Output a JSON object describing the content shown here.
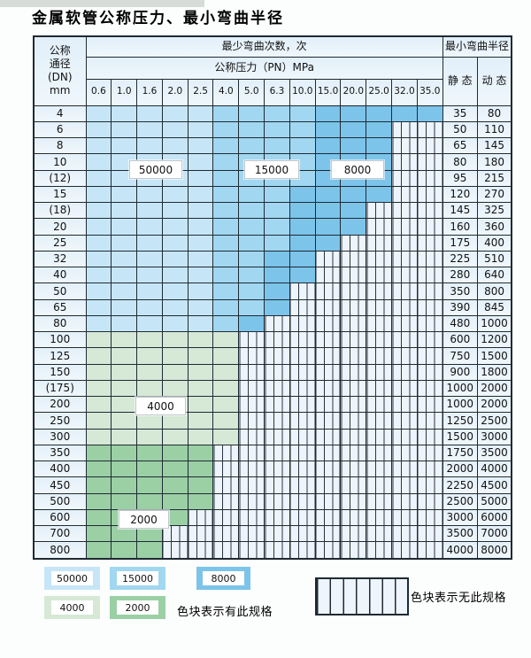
{
  "title": "金属软管公称压力、最小弯曲半径",
  "table": {
    "header": {
      "dn": "公称\n通径\n(DN)\nmm",
      "bend_cycles": "最少弯曲次数，次",
      "pressure": "公称压力（PN）MPa",
      "radius": "最小弯曲半径",
      "static": "静 态",
      "dynamic": "动 态",
      "pressures": [
        "0.6",
        "1.0",
        "1.6",
        "2.0",
        "2.5",
        "4.0",
        "5.0",
        "6.3",
        "10.0",
        "15.0",
        "20.0",
        "25.0",
        "32.0",
        "35.0"
      ]
    },
    "categories": {
      "b1": {
        "value": "50000",
        "color": "#c6e6f7"
      },
      "b2": {
        "value": "15000",
        "color": "#a2d7f1"
      },
      "b3": {
        "value": "8000",
        "color": "#7cc4ea"
      },
      "g1": {
        "value": "4000",
        "color": "#d6e8d6"
      },
      "g2": {
        "value": "2000",
        "color": "#9bd0a5"
      },
      "x": {
        "value": "无此规格",
        "pattern": "hatch"
      }
    },
    "rows": [
      {
        "dn": "4",
        "cells": [
          [
            "b1",
            5
          ],
          [
            "b2",
            4
          ],
          [
            "b3",
            5
          ]
        ],
        "static": "35",
        "dynamic": "80"
      },
      {
        "dn": "6",
        "cells": [
          [
            "b1",
            5
          ],
          [
            "b2",
            4
          ],
          [
            "b3",
            3
          ],
          [
            "x",
            2
          ]
        ],
        "static": "50",
        "dynamic": "110"
      },
      {
        "dn": "8",
        "cells": [
          [
            "b1",
            5
          ],
          [
            "b2",
            4
          ],
          [
            "b3",
            3
          ],
          [
            "x",
            2
          ]
        ],
        "static": "65",
        "dynamic": "145"
      },
      {
        "dn": "10",
        "cells": [
          [
            "b1",
            5
          ],
          [
            "b2",
            4
          ],
          [
            "b3",
            3
          ],
          [
            "x",
            2
          ]
        ],
        "static": "80",
        "dynamic": "180"
      },
      {
        "dn": "(12)",
        "cells": [
          [
            "b1",
            5
          ],
          [
            "b2",
            4
          ],
          [
            "b3",
            3
          ],
          [
            "x",
            2
          ]
        ],
        "static": "95",
        "dynamic": "215"
      },
      {
        "dn": "15",
        "cells": [
          [
            "b1",
            5
          ],
          [
            "b2",
            3
          ],
          [
            "b3",
            4
          ],
          [
            "x",
            2
          ]
        ],
        "static": "120",
        "dynamic": "270"
      },
      {
        "dn": "(18)",
        "cells": [
          [
            "b1",
            5
          ],
          [
            "b2",
            3
          ],
          [
            "b3",
            3
          ],
          [
            "x",
            3
          ]
        ],
        "static": "145",
        "dynamic": "325"
      },
      {
        "dn": "20",
        "cells": [
          [
            "b1",
            5
          ],
          [
            "b2",
            3
          ],
          [
            "b3",
            3
          ],
          [
            "x",
            3
          ]
        ],
        "static": "160",
        "dynamic": "360"
      },
      {
        "dn": "25",
        "cells": [
          [
            "b1",
            5
          ],
          [
            "b2",
            3
          ],
          [
            "b3",
            2
          ],
          [
            "x",
            4
          ]
        ],
        "static": "175",
        "dynamic": "400"
      },
      {
        "dn": "32",
        "cells": [
          [
            "b1",
            5
          ],
          [
            "b2",
            2
          ],
          [
            "b3",
            2
          ],
          [
            "x",
            5
          ]
        ],
        "static": "225",
        "dynamic": "510"
      },
      {
        "dn": "40",
        "cells": [
          [
            "b1",
            5
          ],
          [
            "b2",
            2
          ],
          [
            "b3",
            2
          ],
          [
            "x",
            5
          ]
        ],
        "static": "280",
        "dynamic": "640"
      },
      {
        "dn": "50",
        "cells": [
          [
            "b1",
            5
          ],
          [
            "b2",
            2
          ],
          [
            "b3",
            1
          ],
          [
            "x",
            6
          ]
        ],
        "static": "350",
        "dynamic": "800"
      },
      {
        "dn": "65",
        "cells": [
          [
            "b1",
            5
          ],
          [
            "b2",
            2
          ],
          [
            "b3",
            1
          ],
          [
            "x",
            6
          ]
        ],
        "static": "390",
        "dynamic": "845"
      },
      {
        "dn": "80",
        "cells": [
          [
            "b1",
            5
          ],
          [
            "b2",
            1
          ],
          [
            "b3",
            1
          ],
          [
            "x",
            7
          ]
        ],
        "static": "480",
        "dynamic": "1000"
      },
      {
        "dn": "100",
        "cells": [
          [
            "g1",
            6
          ],
          [
            "x",
            8
          ]
        ],
        "static": "600",
        "dynamic": "1200"
      },
      {
        "dn": "125",
        "cells": [
          [
            "g1",
            6
          ],
          [
            "x",
            8
          ]
        ],
        "static": "750",
        "dynamic": "1500"
      },
      {
        "dn": "150",
        "cells": [
          [
            "g1",
            6
          ],
          [
            "x",
            8
          ]
        ],
        "static": "900",
        "dynamic": "1800"
      },
      {
        "dn": "(175)",
        "cells": [
          [
            "g1",
            6
          ],
          [
            "x",
            8
          ]
        ],
        "static": "1000",
        "dynamic": "2000"
      },
      {
        "dn": "200",
        "cells": [
          [
            "g1",
            6
          ],
          [
            "x",
            8
          ]
        ],
        "static": "1000",
        "dynamic": "2000"
      },
      {
        "dn": "250",
        "cells": [
          [
            "g1",
            6
          ],
          [
            "x",
            8
          ]
        ],
        "static": "1250",
        "dynamic": "2500"
      },
      {
        "dn": "300",
        "cells": [
          [
            "g1",
            6
          ],
          [
            "x",
            8
          ]
        ],
        "static": "1500",
        "dynamic": "3000"
      },
      {
        "dn": "350",
        "cells": [
          [
            "g2",
            5
          ],
          [
            "x",
            9
          ]
        ],
        "static": "1750",
        "dynamic": "3500"
      },
      {
        "dn": "400",
        "cells": [
          [
            "g2",
            5
          ],
          [
            "x",
            9
          ]
        ],
        "static": "2000",
        "dynamic": "4000"
      },
      {
        "dn": "450",
        "cells": [
          [
            "g2",
            5
          ],
          [
            "x",
            9
          ]
        ],
        "static": "2250",
        "dynamic": "4500"
      },
      {
        "dn": "500",
        "cells": [
          [
            "g2",
            5
          ],
          [
            "x",
            9
          ]
        ],
        "static": "2500",
        "dynamic": "5000"
      },
      {
        "dn": "600",
        "cells": [
          [
            "g2",
            4
          ],
          [
            "x",
            10
          ]
        ],
        "static": "3000",
        "dynamic": "6000"
      },
      {
        "dn": "700",
        "cells": [
          [
            "g2",
            3
          ],
          [
            "x",
            11
          ]
        ],
        "static": "3500",
        "dynamic": "7000"
      },
      {
        "dn": "800",
        "cells": [
          [
            "g2",
            3
          ],
          [
            "x",
            11
          ]
        ],
        "static": "4000",
        "dynamic": "8000"
      }
    ]
  },
  "region_labels": {
    "r50000": "50000",
    "r15000": "15000",
    "r8000": "8000",
    "r4000": "4000",
    "r2000": "2000"
  },
  "legend": {
    "items": [
      {
        "label": "50000",
        "color": "#c6e6f7"
      },
      {
        "label": "15000",
        "color": "#a2d7f1"
      },
      {
        "label": "8000",
        "color": "#7cc4ea"
      },
      {
        "label": "4000",
        "color": "#d6e8d6"
      },
      {
        "label": "2000",
        "color": "#9bd0a5"
      }
    ],
    "has_spec_text": "色块表示有此规格",
    "no_spec_text": "色块表示无此规格"
  },
  "colors": {
    "grid_line": "#1f2a33",
    "header_fill": "#e7f2fa",
    "hatch_fill": "#edf4fb",
    "page_bg": "#fcfdfd"
  }
}
